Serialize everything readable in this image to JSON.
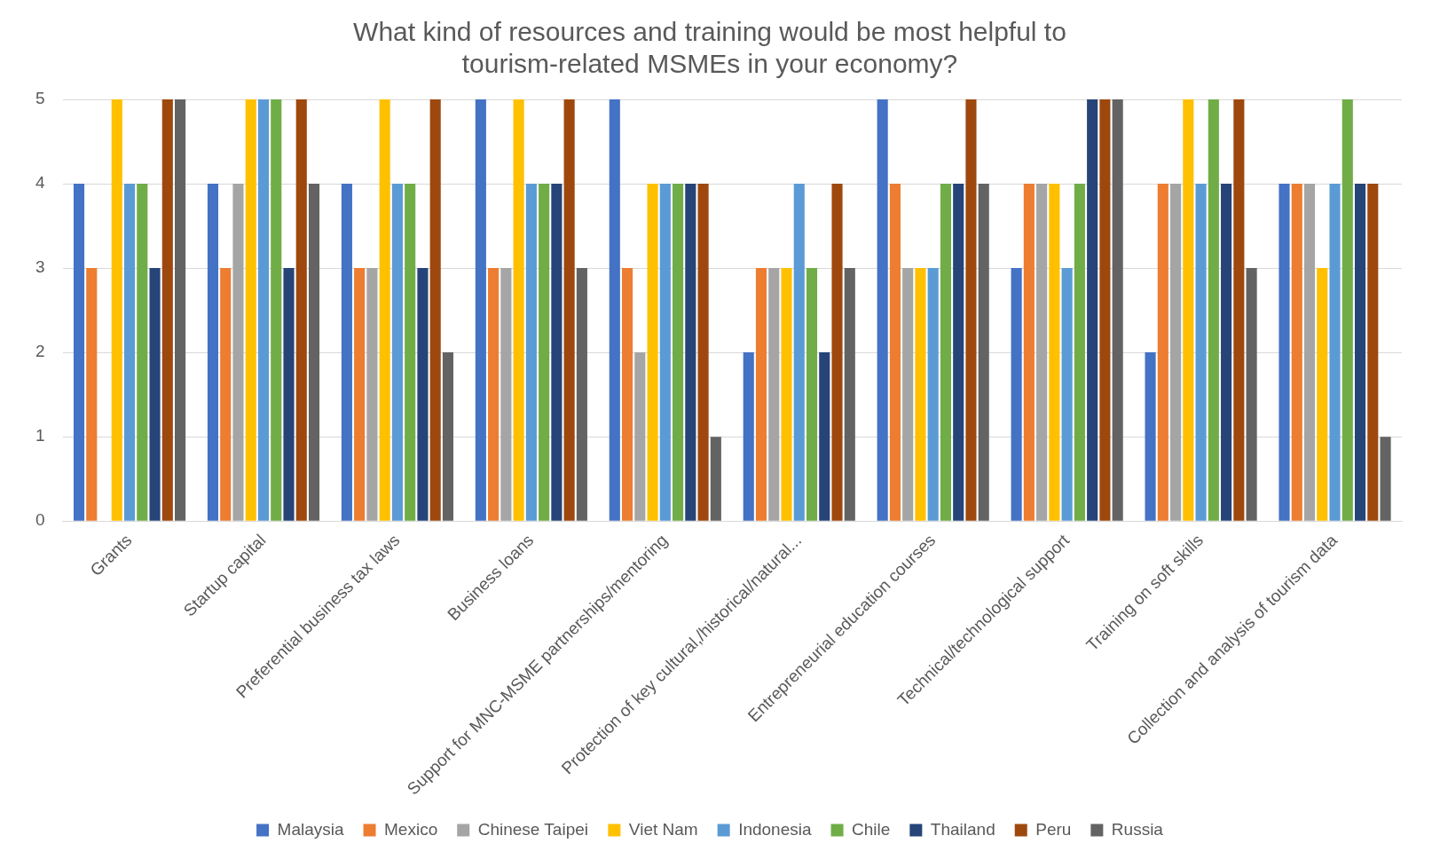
{
  "chart_data": {
    "type": "bar",
    "title": "What kind of resources and training would be most helpful to tourism-related MSMEs in your economy?",
    "categories": [
      "Grants",
      "Startup capital",
      "Preferential business tax laws",
      "Business loans",
      "Support for MNC-MSME partnerships/mentoring",
      "Protection of key cultural,/historical/natural...",
      "Entrepreneurial education courses",
      "Technical/technological support",
      "Training on soft skills",
      "Collection and analysis of tourism data"
    ],
    "series": [
      {
        "name": "Malaysia",
        "color": "#4472c4",
        "values": [
          4,
          4,
          4,
          5,
          5,
          2,
          5,
          3,
          2,
          4
        ]
      },
      {
        "name": "Mexico",
        "color": "#ed7d31",
        "values": [
          3,
          3,
          3,
          3,
          3,
          3,
          4,
          4,
          4,
          4
        ]
      },
      {
        "name": "Chinese Taipei",
        "color": "#a5a5a5",
        "values": [
          null,
          4,
          3,
          3,
          2,
          3,
          3,
          4,
          4,
          4
        ]
      },
      {
        "name": "Viet Nam",
        "color": "#ffc000",
        "values": [
          5,
          5,
          5,
          5,
          4,
          3,
          3,
          4,
          5,
          3
        ]
      },
      {
        "name": "Indonesia",
        "color": "#5b9bd5",
        "values": [
          4,
          5,
          4,
          4,
          4,
          4,
          3,
          3,
          4,
          4
        ]
      },
      {
        "name": "Chile",
        "color": "#70ad47",
        "values": [
          4,
          5,
          4,
          4,
          4,
          3,
          4,
          4,
          5,
          5
        ]
      },
      {
        "name": "Thailand",
        "color": "#264478",
        "values": [
          3,
          3,
          3,
          4,
          4,
          2,
          4,
          5,
          4,
          4
        ]
      },
      {
        "name": "Peru",
        "color": "#9e480e",
        "values": [
          5,
          5,
          5,
          5,
          4,
          4,
          5,
          5,
          5,
          4
        ]
      },
      {
        "name": "Russia",
        "color": "#636363",
        "values": [
          5,
          4,
          2,
          3,
          1,
          3,
          4,
          5,
          3,
          1
        ]
      }
    ],
    "ylim": [
      0,
      5
    ],
    "yticks": [
      0,
      1,
      2,
      3,
      4,
      5
    ],
    "grid": "y",
    "legend": "bottom"
  }
}
